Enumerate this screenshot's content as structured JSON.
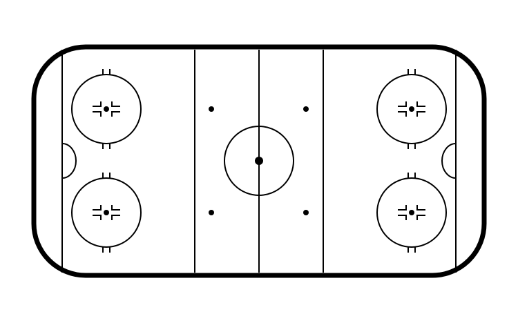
{
  "diagram": {
    "kind": "ice-hockey-rink",
    "orientation": "horizontal",
    "colors": {
      "background": "#ffffff",
      "ice": "#ffffff",
      "lines": "#000000"
    },
    "elements": {
      "boards": 1,
      "goal_lines": 2,
      "blue_lines": 2,
      "center_line": 1,
      "center_faceoff_circle": 1,
      "center_faceoff_spot": 1,
      "neutral_zone_faceoff_spots": 4,
      "end_zone_faceoff_circles": 4,
      "goalie_creases": 2
    }
  }
}
